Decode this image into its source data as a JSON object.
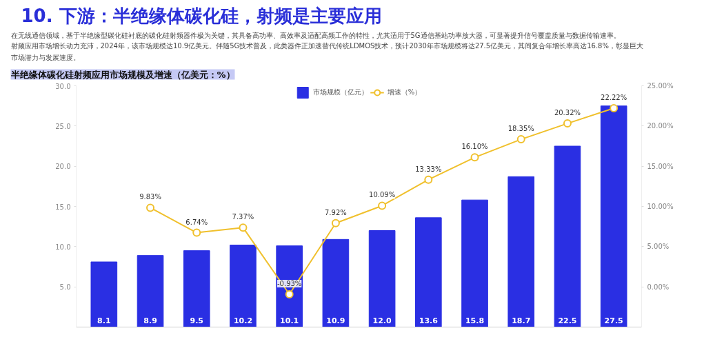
{
  "chart_data": {
    "type": "bar",
    "title": "10. 下游：半绝缘体碳化硅，射频是主要应用",
    "subtitle": "半绝缘体碳化硅射频应用市场规模及增速（亿美元：%）",
    "annotations": [
      "在无线通信领域，基于半绝缘型碳化硅衬底的碳化硅射频器件极为关键，其具备高功率、高效率及适配高频工作的特性，尤其适用于5G通信基站功率放大器，可显著提升信号覆盖质量与数据传输速率。",
      "射频应用市场增长动力充沛，2024年，该市场规模达10.9亿美元。伴随5G技术普及，此类器件正加速替代传统LDMOS技术，预计2030年市场规模将达27.5亿美元，其间复合年增长率高达16.8%，彰显巨大市场潜力与发展速度。"
    ],
    "categories": [
      null,
      null,
      null,
      null,
      null,
      null,
      null,
      null,
      null,
      null,
      null,
      null
    ],
    "series": [
      {
        "name": "市场规模（亿元）",
        "color": "#2a2fe3",
        "values": [
          8.1,
          8.9,
          9.5,
          10.2,
          10.1,
          10.9,
          12.0,
          13.6,
          15.8,
          18.7,
          22.5,
          27.5
        ],
        "value_labels": [
          "8.1",
          "8.9",
          "9.5",
          "10.2",
          "10.1",
          "10.9",
          "12.0",
          "13.6",
          "15.8",
          "18.7",
          "22.5",
          "27.5"
        ]
      },
      {
        "name": "增速（%）",
        "type": "line",
        "axis": "y2",
        "color": "#f0c02c",
        "marker": "circle",
        "values": [
          null,
          9.83,
          6.74,
          7.37,
          -0.93,
          7.92,
          10.09,
          13.33,
          16.1,
          18.35,
          20.32,
          22.22
        ],
        "value_labels": [
          null,
          "9.83%",
          "6.74%",
          "7.37%",
          "-0.93%",
          "7.92%",
          "10.09%",
          "13.33%",
          "16.10%",
          "18.35%",
          "20.32%",
          "22.22%"
        ]
      }
    ],
    "ylim": [
      0,
      30
    ],
    "yticks": [
      {
        "value": 5,
        "label": "5.0"
      },
      {
        "value": 10,
        "label": "10.0"
      },
      {
        "value": 15,
        "label": "15.0"
      },
      {
        "value": 20,
        "label": "20.0"
      },
      {
        "value": 25,
        "label": "25.0"
      },
      {
        "value": 30,
        "label": "30.0"
      }
    ],
    "y2lim": [
      -5,
      25
    ],
    "y2ticks": [
      {
        "value": 0,
        "label": "0.00%"
      },
      {
        "value": 5,
        "label": "5.00%"
      },
      {
        "value": 10,
        "label": "10.00%"
      },
      {
        "value": 15,
        "label": "15.00%"
      },
      {
        "value": 20,
        "label": "20.00%"
      },
      {
        "value": 25,
        "label": "25.00%"
      }
    ],
    "tick_labels": "y",
    "grid": false,
    "legend": "top"
  }
}
